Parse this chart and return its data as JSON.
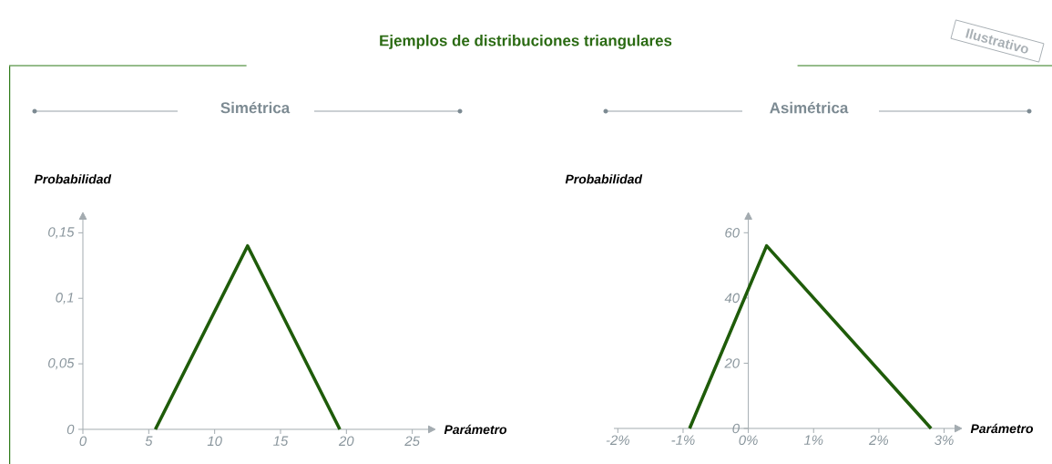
{
  "chart_data": [
    {
      "type": "line",
      "title": "Ejemplos de distribuciones triangulares",
      "subtitle": "Simétrica",
      "xlabel": "Parámetro",
      "ylabel": "Probabilidad",
      "x": [
        5.5,
        12.5,
        19.5
      ],
      "values": [
        0,
        0.14,
        0
      ],
      "color": "#1f5c0a",
      "xlim": [
        0,
        26.2
      ],
      "ylim": [
        0,
        0.16
      ],
      "xticks": [
        0,
        5,
        10,
        15,
        20,
        25
      ],
      "yticks": [
        0,
        {
          "value": 0.05,
          "label": "0,05"
        },
        {
          "value": 0.1,
          "label": "0,1"
        },
        {
          "value": 0.15,
          "label": "0,15"
        }
      ]
    },
    {
      "type": "line",
      "subtitle": "Asimétrica",
      "xlabel": "Parámetro",
      "ylabel": "Probabilidad",
      "x": [
        -0.9,
        0.28,
        2.8
      ],
      "values": [
        0,
        56,
        0
      ],
      "color": "#1f5c0a",
      "xlim": [
        -2.06,
        3.16
      ],
      "ylim": [
        0,
        64
      ],
      "xticks": [
        {
          "value": -2,
          "label": "-2%"
        },
        {
          "value": -1,
          "label": "-1%"
        },
        {
          "value": 0,
          "label": "0%"
        },
        {
          "value": 1,
          "label": "1%"
        },
        {
          "value": 2,
          "label": "2%"
        },
        {
          "value": 3,
          "label": "3%"
        }
      ],
      "yticks": [
        0,
        20,
        40,
        60
      ],
      "annotations": [
        "Ilustrativo"
      ]
    }
  ]
}
